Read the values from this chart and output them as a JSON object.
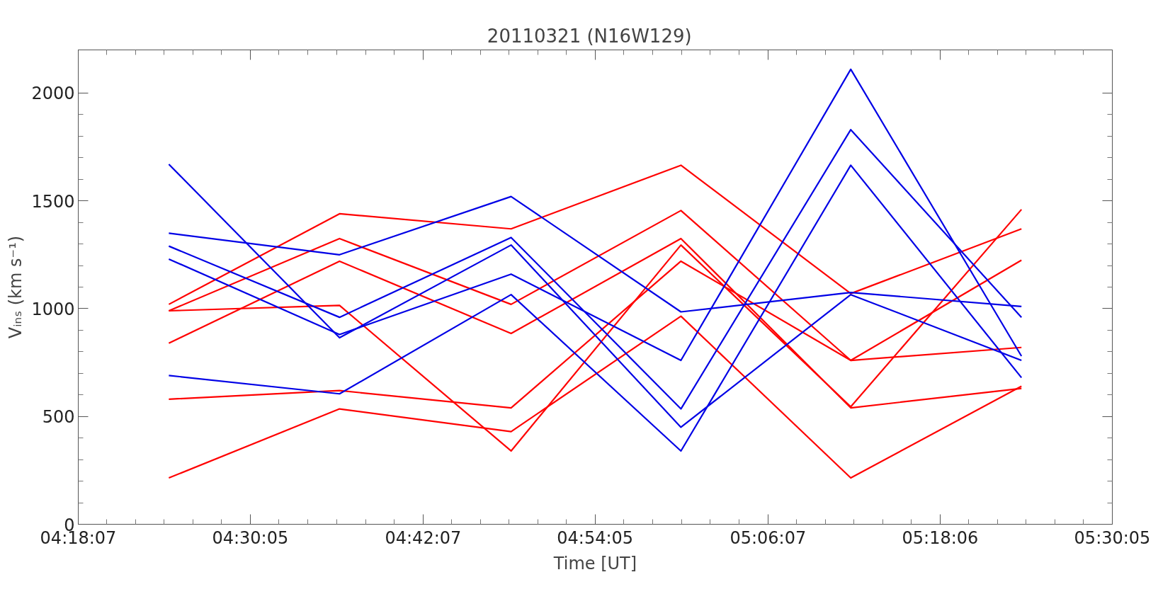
{
  "chart_data": {
    "type": "line",
    "title": "20110321   (N16W129)",
    "xlabel": "Time [UT]",
    "ylabel": "Vᵢₙₛ (km s⁻¹)",
    "x": [
      4.407,
      4.605,
      4.804,
      5.001,
      5.198,
      5.396
    ],
    "xlim": [
      4.30194,
      5.50139
    ],
    "xticks": [
      {
        "value": 4.30194,
        "label": "04:18:07"
      },
      {
        "value": 4.50139,
        "label": "04:30:05"
      },
      {
        "value": 4.70194,
        "label": "04:42:07"
      },
      {
        "value": 4.90139,
        "label": "04:54:05"
      },
      {
        "value": 5.10194,
        "label": "05:06:07"
      },
      {
        "value": 5.30167,
        "label": "05:18:06"
      },
      {
        "value": 5.50139,
        "label": "05:30:05"
      }
    ],
    "ylim": [
      0,
      2200
    ],
    "yticks": [
      0,
      500,
      1000,
      1500,
      2000
    ],
    "grid": false,
    "marker": "none",
    "line_style": "solid",
    "series": [
      {
        "color": "#ff0000",
        "values": [
          1020,
          1440,
          1370,
          1665,
          1070,
          1370
        ]
      },
      {
        "color": "#ff0000",
        "values": [
          990,
          1325,
          1020,
          1455,
          760,
          1225
        ]
      },
      {
        "color": "#ff0000",
        "values": [
          990,
          1015,
          340,
          1295,
          545,
          1460
        ]
      },
      {
        "color": "#ff0000",
        "values": [
          840,
          1220,
          885,
          1325,
          540,
          630
        ]
      },
      {
        "color": "#ff0000",
        "values": [
          580,
          620,
          540,
          1220,
          760,
          820
        ]
      },
      {
        "color": "#ff0000",
        "values": [
          215,
          535,
          430,
          965,
          215,
          640
        ]
      },
      {
        "color": "#0000e6",
        "values": [
          1670,
          865,
          1295,
          450,
          1065,
          760
        ]
      },
      {
        "color": "#0000e6",
        "values": [
          1350,
          1250,
          1520,
          985,
          1075,
          1010
        ]
      },
      {
        "color": "#0000e6",
        "values": [
          1290,
          960,
          1330,
          535,
          1830,
          960
        ]
      },
      {
        "color": "#0000e6",
        "values": [
          1230,
          880,
          1160,
          760,
          2110,
          780
        ]
      },
      {
        "color": "#0000e6",
        "values": [
          690,
          605,
          1065,
          340,
          1665,
          680
        ]
      }
    ]
  }
}
